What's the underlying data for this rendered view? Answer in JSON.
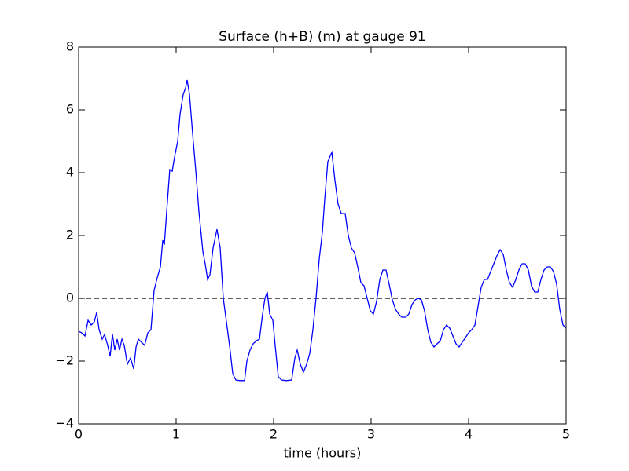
{
  "chart_data": {
    "type": "line",
    "title": "Surface (h+B) (m) at gauge 91",
    "xlabel": "time (hours)",
    "color": "#0000ff",
    "xlim": [
      0,
      5
    ],
    "ylim": [
      -4,
      8
    ],
    "xticks": [
      0,
      1,
      2,
      3,
      4,
      5
    ],
    "yticks": [
      {
        "value": -4,
        "label": "−4"
      },
      {
        "value": -2,
        "label": "−2"
      },
      0,
      2,
      4,
      6,
      8
    ],
    "hline": {
      "value": 0,
      "style": "dashed",
      "color": "#000000"
    },
    "x": [
      0,
      0.032,
      0.065,
      0.097,
      0.129,
      0.161,
      0.185,
      0.21,
      0.242,
      0.266,
      0.298,
      0.323,
      0.347,
      0.371,
      0.395,
      0.419,
      0.444,
      0.468,
      0.5,
      0.532,
      0.565,
      0.589,
      0.613,
      0.645,
      0.677,
      0.71,
      0.742,
      0.774,
      0.806,
      0.839,
      0.863,
      0.879,
      0.903,
      0.935,
      0.96,
      0.984,
      1.016,
      1.04,
      1.073,
      1.097,
      1.113,
      1.137,
      1.169,
      1.202,
      1.234,
      1.274,
      1.298,
      1.323,
      1.347,
      1.379,
      1.419,
      1.452,
      1.484,
      1.516,
      1.548,
      1.581,
      1.613,
      1.653,
      1.702,
      1.726,
      1.758,
      1.79,
      1.823,
      1.855,
      1.887,
      1.911,
      1.935,
      1.96,
      1.992,
      2.016,
      2.048,
      2.081,
      2.129,
      2.185,
      2.218,
      2.242,
      2.274,
      2.306,
      2.339,
      2.371,
      2.403,
      2.435,
      2.468,
      2.5,
      2.524,
      2.556,
      2.597,
      2.629,
      2.661,
      2.694,
      2.734,
      2.766,
      2.798,
      2.831,
      2.863,
      2.895,
      2.927,
      2.96,
      2.992,
      3.024,
      3.056,
      3.089,
      3.121,
      3.153,
      3.185,
      3.218,
      3.25,
      3.282,
      3.315,
      3.355,
      3.387,
      3.419,
      3.452,
      3.484,
      3.516,
      3.548,
      3.581,
      3.613,
      3.645,
      3.677,
      3.71,
      3.742,
      3.774,
      3.806,
      3.839,
      3.871,
      3.903,
      3.935,
      3.968,
      4.0,
      4.032,
      4.065,
      4.097,
      4.129,
      4.161,
      4.194,
      4.226,
      4.258,
      4.29,
      4.323,
      4.355,
      4.387,
      4.419,
      4.452,
      4.484,
      4.516,
      4.548,
      4.581,
      4.613,
      4.645,
      4.677,
      4.71,
      4.742,
      4.774,
      4.806,
      4.839,
      4.871,
      4.903,
      4.935,
      4.968,
      5.0
    ],
    "values": [
      -1.05,
      -1.1,
      -1.2,
      -0.7,
      -0.85,
      -0.75,
      -0.45,
      -1.0,
      -1.3,
      -1.15,
      -1.5,
      -1.85,
      -1.15,
      -1.65,
      -1.3,
      -1.65,
      -1.3,
      -1.5,
      -2.1,
      -1.9,
      -2.25,
      -1.55,
      -1.3,
      -1.4,
      -1.5,
      -1.1,
      -1.0,
      0.25,
      0.65,
      1.0,
      1.85,
      1.7,
      2.75,
      4.1,
      4.05,
      4.5,
      5.0,
      5.85,
      6.5,
      6.7,
      6.95,
      6.5,
      5.25,
      4.05,
      2.75,
      1.5,
      1.1,
      0.6,
      0.75,
      1.6,
      2.2,
      1.6,
      0,
      -0.75,
      -1.5,
      -2.4,
      -2.6,
      -2.62,
      -2.62,
      -2.0,
      -1.65,
      -1.45,
      -1.35,
      -1.3,
      -0.5,
      0,
      0.2,
      -0.5,
      -0.7,
      -1.5,
      -2.5,
      -2.6,
      -2.62,
      -2.6,
      -1.9,
      -1.65,
      -2.1,
      -2.35,
      -2.1,
      -1.75,
      -1.0,
      0,
      1.25,
      2.1,
      3.15,
      4.35,
      4.65,
      3.75,
      3.0,
      2.7,
      2.7,
      2.0,
      1.6,
      1.45,
      1.0,
      0.5,
      0.4,
      0,
      -0.4,
      -0.5,
      -0.1,
      0.6,
      0.9,
      0.9,
      0.45,
      -0.05,
      -0.35,
      -0.5,
      -0.6,
      -0.6,
      -0.5,
      -0.2,
      -0.05,
      0,
      -0.05,
      -0.4,
      -1.0,
      -1.4,
      -1.55,
      -1.45,
      -1.35,
      -1.0,
      -0.85,
      -0.95,
      -1.2,
      -1.45,
      -1.55,
      -1.4,
      -1.25,
      -1.1,
      -1.0,
      -0.85,
      -0.25,
      0.35,
      0.6,
      0.6,
      0.85,
      1.1,
      1.35,
      1.55,
      1.4,
      0.9,
      0.5,
      0.35,
      0.6,
      0.9,
      1.1,
      1.1,
      0.9,
      0.4,
      0.2,
      0.2,
      0.6,
      0.9,
      1.0,
      1.0,
      0.85,
      0.45,
      -0.35,
      -0.85,
      -0.95
    ]
  }
}
